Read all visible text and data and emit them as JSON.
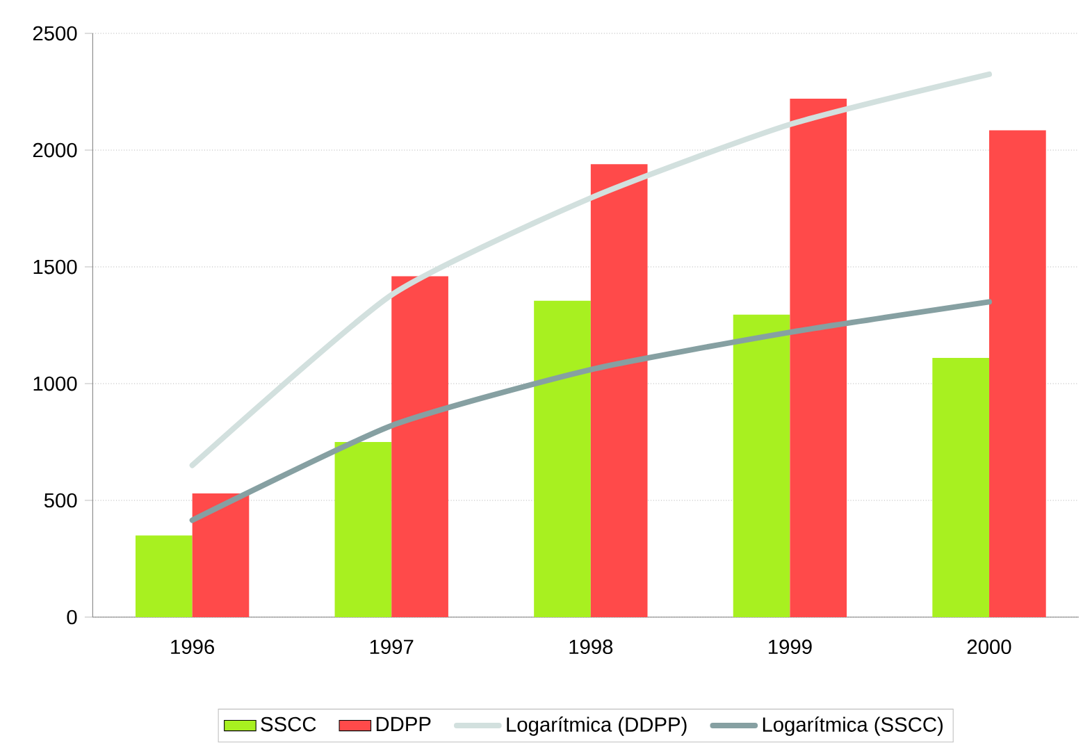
{
  "chart_data": {
    "type": "bar",
    "categories": [
      "1996",
      "1997",
      "1998",
      "1999",
      "2000"
    ],
    "series": [
      {
        "name": "SSCC",
        "color": "#a8f020",
        "values": [
          350,
          750,
          1355,
          1295,
          1110
        ]
      },
      {
        "name": "DDPP",
        "color": "#ff4a4a",
        "values": [
          530,
          1460,
          1940,
          2220,
          2085
        ]
      },
      {
        "name": "Logarítmica (DDPP)",
        "type": "line",
        "color": "#d2e0de",
        "values": [
          650,
          1380,
          1795,
          2110,
          2325
        ]
      },
      {
        "name": "Logarítmica (SSCC)",
        "type": "line",
        "color": "#86a0a2",
        "values": [
          415,
          820,
          1060,
          1220,
          1350
        ]
      }
    ],
    "ylim": [
      0,
      2500
    ],
    "yticks": [
      0,
      500,
      1000,
      1500,
      2000,
      2500
    ],
    "grid": "y",
    "legend": "bottom",
    "marker": "none",
    "line_style": "solid"
  }
}
